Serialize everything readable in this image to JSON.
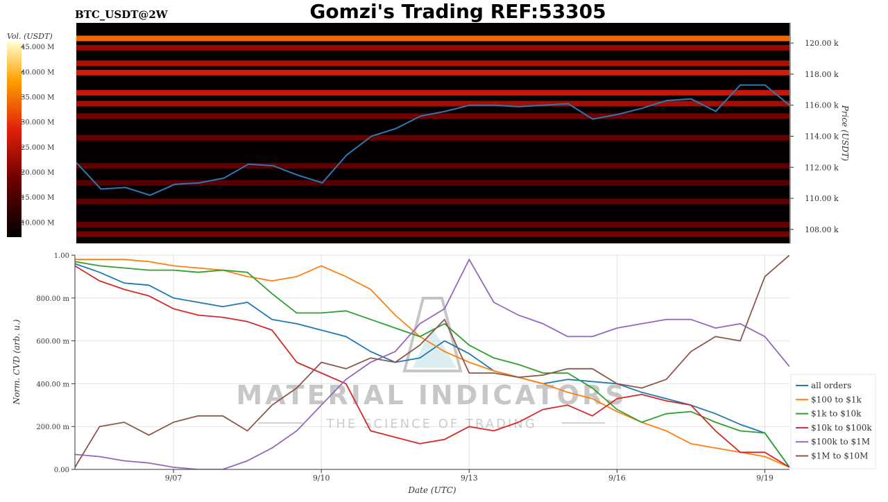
{
  "title": "Gomzi's Trading REF:53305",
  "symbol": "BTC_USDT@2W",
  "watermark": {
    "main": "MATERIAL INDICATORS",
    "sub": "THE SCIENCE OF TRADING"
  },
  "colors": {
    "price_line": "#2a7ab8"
  },
  "chart_data": [
    {
      "type": "heatmap",
      "name": "order-book-heatmap",
      "xlim": [
        "2025-09-05T00:00",
        "2025-09-19T12:00"
      ],
      "ylim": [
        107100,
        121300
      ],
      "y_label": "Price (USDT)",
      "y_ticks": [
        108000,
        110000,
        112000,
        114000,
        116000,
        118000,
        120000
      ],
      "y_tick_labels": [
        "108.00 k",
        "110.00 k",
        "112.00 k",
        "114.00 k",
        "116.00 k",
        "118.00 k",
        "120.00 k"
      ],
      "colorbar": {
        "label": "Vol. (USDT)",
        "range": [
          7000000,
          46000000
        ],
        "ticks": [
          10000000,
          15000000,
          20000000,
          25000000,
          30000000,
          35000000,
          40000000,
          45000000
        ],
        "tick_labels": [
          "10.000 M",
          "15.000 M",
          "20.000 M",
          "25.000 M",
          "30.000 M",
          "35.000 M",
          "40.000 M",
          "45.000 M"
        ]
      },
      "price_series": {
        "x": [
          "2025-09-05T00:00",
          "2025-09-05T12:00",
          "2025-09-06T00:00",
          "2025-09-06T12:00",
          "2025-09-07T00:00",
          "2025-09-07T12:00",
          "2025-09-08T00:00",
          "2025-09-08T12:00",
          "2025-09-09T00:00",
          "2025-09-09T12:00",
          "2025-09-10T00:00",
          "2025-09-10T12:00",
          "2025-09-11T00:00",
          "2025-09-11T12:00",
          "2025-09-12T00:00",
          "2025-09-12T12:00",
          "2025-09-13T00:00",
          "2025-09-13T12:00",
          "2025-09-14T00:00",
          "2025-09-14T12:00",
          "2025-09-15T00:00",
          "2025-09-15T12:00",
          "2025-09-16T00:00",
          "2025-09-16T12:00",
          "2025-09-17T00:00",
          "2025-09-17T12:00",
          "2025-09-18T00:00",
          "2025-09-18T12:00",
          "2025-09-19T00:00",
          "2025-09-19T12:00"
        ],
        "y": [
          112300,
          110600,
          110700,
          110200,
          110900,
          111000,
          111300,
          112200,
          112100,
          111500,
          111000,
          112800,
          114000,
          114500,
          115300,
          115600,
          116000,
          116000,
          115900,
          116000,
          116100,
          115100,
          115400,
          115800,
          116300,
          116400,
          115600,
          117300,
          117300,
          116000
        ]
      },
      "volume_bands": [
        {
          "price": 120300,
          "volume": 34000000
        },
        {
          "price": 119700,
          "volume": 22000000
        },
        {
          "price": 118700,
          "volume": 24000000
        },
        {
          "price": 118100,
          "volume": 27000000
        },
        {
          "price": 116800,
          "volume": 26000000
        },
        {
          "price": 116100,
          "volume": 23000000
        },
        {
          "price": 115300,
          "volume": 19000000
        },
        {
          "price": 113900,
          "volume": 18000000
        },
        {
          "price": 112100,
          "volume": 17000000
        },
        {
          "price": 111000,
          "volume": 16000000
        },
        {
          "price": 109800,
          "volume": 17000000
        },
        {
          "price": 108300,
          "volume": 18000000
        },
        {
          "price": 107700,
          "volume": 19000000
        }
      ]
    },
    {
      "type": "line",
      "name": "normalized-cvd",
      "x_label": "Date (UTC)",
      "y_label": "Norm. CVD (arb. u.)",
      "ylim": [
        0,
        1
      ],
      "xlim": [
        "2025-09-05T00:00",
        "2025-09-19T12:00"
      ],
      "x_ticks": [
        "2025-09-07",
        "2025-09-10",
        "2025-09-13",
        "2025-09-16",
        "2025-09-19"
      ],
      "x_tick_labels": [
        "9/07",
        "9/10",
        "9/13",
        "9/16",
        "9/19"
      ],
      "y_ticks": [
        0,
        0.2,
        0.4,
        0.6,
        0.8,
        1.0
      ],
      "y_tick_labels": [
        "0.00",
        "200.00 m",
        "400.00 m",
        "600.00 m",
        "800.00 m",
        "1.00"
      ],
      "legend_position": "bottom-right",
      "x": [
        "2025-09-05T00:00",
        "2025-09-05T12:00",
        "2025-09-06T00:00",
        "2025-09-06T12:00",
        "2025-09-07T00:00",
        "2025-09-07T12:00",
        "2025-09-08T00:00",
        "2025-09-08T12:00",
        "2025-09-09T00:00",
        "2025-09-09T12:00",
        "2025-09-10T00:00",
        "2025-09-10T12:00",
        "2025-09-11T00:00",
        "2025-09-11T12:00",
        "2025-09-12T00:00",
        "2025-09-12T12:00",
        "2025-09-13T00:00",
        "2025-09-13T12:00",
        "2025-09-14T00:00",
        "2025-09-14T12:00",
        "2025-09-15T00:00",
        "2025-09-15T12:00",
        "2025-09-16T00:00",
        "2025-09-16T12:00",
        "2025-09-17T00:00",
        "2025-09-17T12:00",
        "2025-09-18T00:00",
        "2025-09-18T12:00",
        "2025-09-19T00:00",
        "2025-09-19T12:00"
      ],
      "series": [
        {
          "name": "all orders",
          "color": "#1f77b4",
          "values": [
            0.96,
            0.92,
            0.87,
            0.86,
            0.8,
            0.78,
            0.76,
            0.78,
            0.7,
            0.68,
            0.65,
            0.62,
            0.55,
            0.5,
            0.52,
            0.6,
            0.54,
            0.46,
            0.43,
            0.4,
            0.42,
            0.41,
            0.4,
            0.36,
            0.33,
            0.3,
            0.26,
            0.21,
            0.17,
            0.01
          ]
        },
        {
          "name": "$100 to $1k",
          "color": "#ff7f0e",
          "values": [
            0.98,
            0.98,
            0.98,
            0.97,
            0.95,
            0.94,
            0.93,
            0.9,
            0.88,
            0.9,
            0.95,
            0.9,
            0.84,
            0.72,
            0.62,
            0.55,
            0.5,
            0.46,
            0.43,
            0.4,
            0.36,
            0.33,
            0.27,
            0.22,
            0.18,
            0.12,
            0.1,
            0.08,
            0.06,
            0.01
          ]
        },
        {
          "name": "$1k to $10k",
          "color": "#2ca02c",
          "values": [
            0.97,
            0.95,
            0.94,
            0.93,
            0.93,
            0.92,
            0.93,
            0.92,
            0.82,
            0.73,
            0.73,
            0.74,
            0.7,
            0.66,
            0.62,
            0.68,
            0.58,
            0.52,
            0.49,
            0.45,
            0.45,
            0.38,
            0.28,
            0.22,
            0.26,
            0.27,
            0.22,
            0.18,
            0.17,
            0.01
          ]
        },
        {
          "name": "$10k to $100k",
          "color": "#d62728",
          "values": [
            0.95,
            0.88,
            0.84,
            0.81,
            0.75,
            0.72,
            0.71,
            0.69,
            0.65,
            0.5,
            0.45,
            0.4,
            0.18,
            0.15,
            0.12,
            0.14,
            0.2,
            0.18,
            0.22,
            0.28,
            0.3,
            0.25,
            0.33,
            0.35,
            0.32,
            0.3,
            0.18,
            0.08,
            0.08,
            0.01
          ]
        },
        {
          "name": "$100k to $1M",
          "color": "#9467bd",
          "values": [
            0.07,
            0.06,
            0.04,
            0.03,
            0.01,
            0.0,
            0.0,
            0.04,
            0.1,
            0.18,
            0.3,
            0.42,
            0.5,
            0.55,
            0.68,
            0.75,
            0.98,
            0.78,
            0.72,
            0.68,
            0.62,
            0.62,
            0.66,
            0.68,
            0.7,
            0.7,
            0.66,
            0.68,
            0.62,
            0.48
          ]
        },
        {
          "name": "$1M to $10M",
          "color": "#8c564b",
          "values": [
            0.01,
            0.2,
            0.22,
            0.16,
            0.22,
            0.25,
            0.25,
            0.18,
            0.3,
            0.38,
            0.5,
            0.47,
            0.52,
            0.5,
            0.58,
            0.7,
            0.45,
            0.45,
            0.43,
            0.44,
            0.47,
            0.47,
            0.4,
            0.38,
            0.42,
            0.55,
            0.62,
            0.6,
            0.9,
            1.0
          ]
        }
      ]
    }
  ]
}
